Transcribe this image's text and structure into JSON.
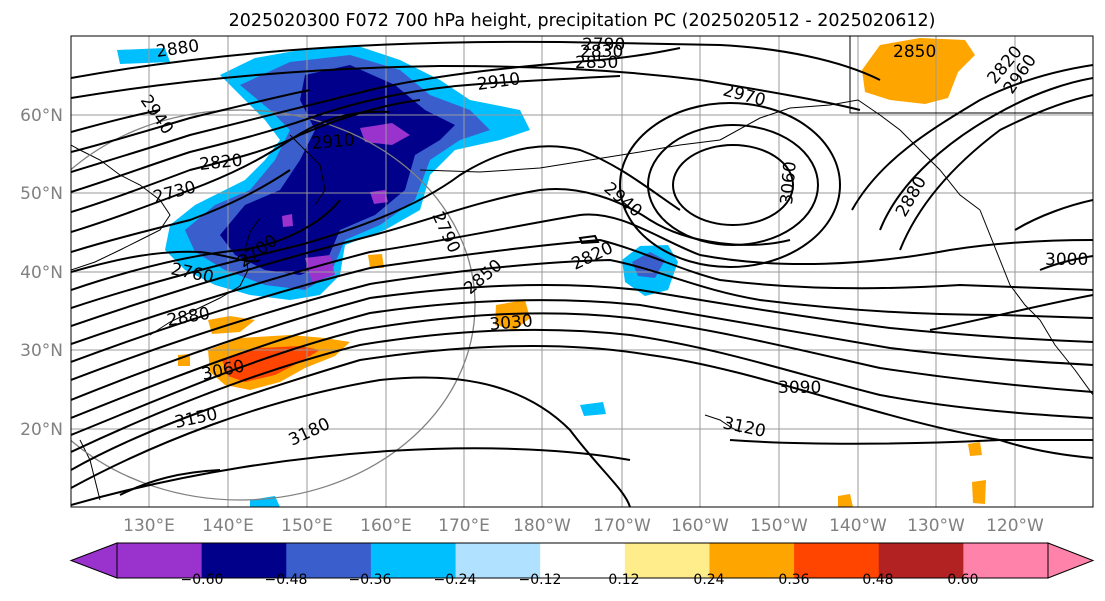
{
  "title": "2025020300 F072 700 hPa height, precipitation PC (2025020512 - 2025020612)",
  "lat_labels": [
    "60°N",
    "50°N",
    "40°N",
    "30°N",
    "20°N"
  ],
  "lon_labels": [
    "130°E",
    "140°E",
    "150°E",
    "160°E",
    "170°E",
    "180°W",
    "170°W",
    "160°W",
    "150°W",
    "140°W",
    "130°W",
    "120°W"
  ],
  "colorbar": {
    "colors": [
      "#9a32cd",
      "#00008b",
      "#3a5fcd",
      "#00bfff",
      "#b0e2ff",
      "#ffffff",
      "#ffec8b",
      "#ffa500",
      "#ff4500",
      "#b22222",
      "#ff82ab"
    ],
    "tick_labels": [
      "−0.60",
      "−0.48",
      "−0.36",
      "−0.24",
      "−0.12",
      "0.12",
      "0.24",
      "0.36",
      "0.48",
      "0.60"
    ]
  },
  "contour_labels": [
    "2880",
    "2940",
    "2820",
    "2730",
    "2760",
    "2880",
    "2910",
    "2700",
    "3060",
    "3150",
    "3180",
    "2790",
    "2850",
    "2820",
    "2910",
    "2940",
    "2970",
    "3060",
    "2880",
    "3030",
    "3090",
    "3120",
    "3000",
    "2790",
    "2830",
    "2850",
    "2960",
    "2820",
    "2850"
  ]
}
